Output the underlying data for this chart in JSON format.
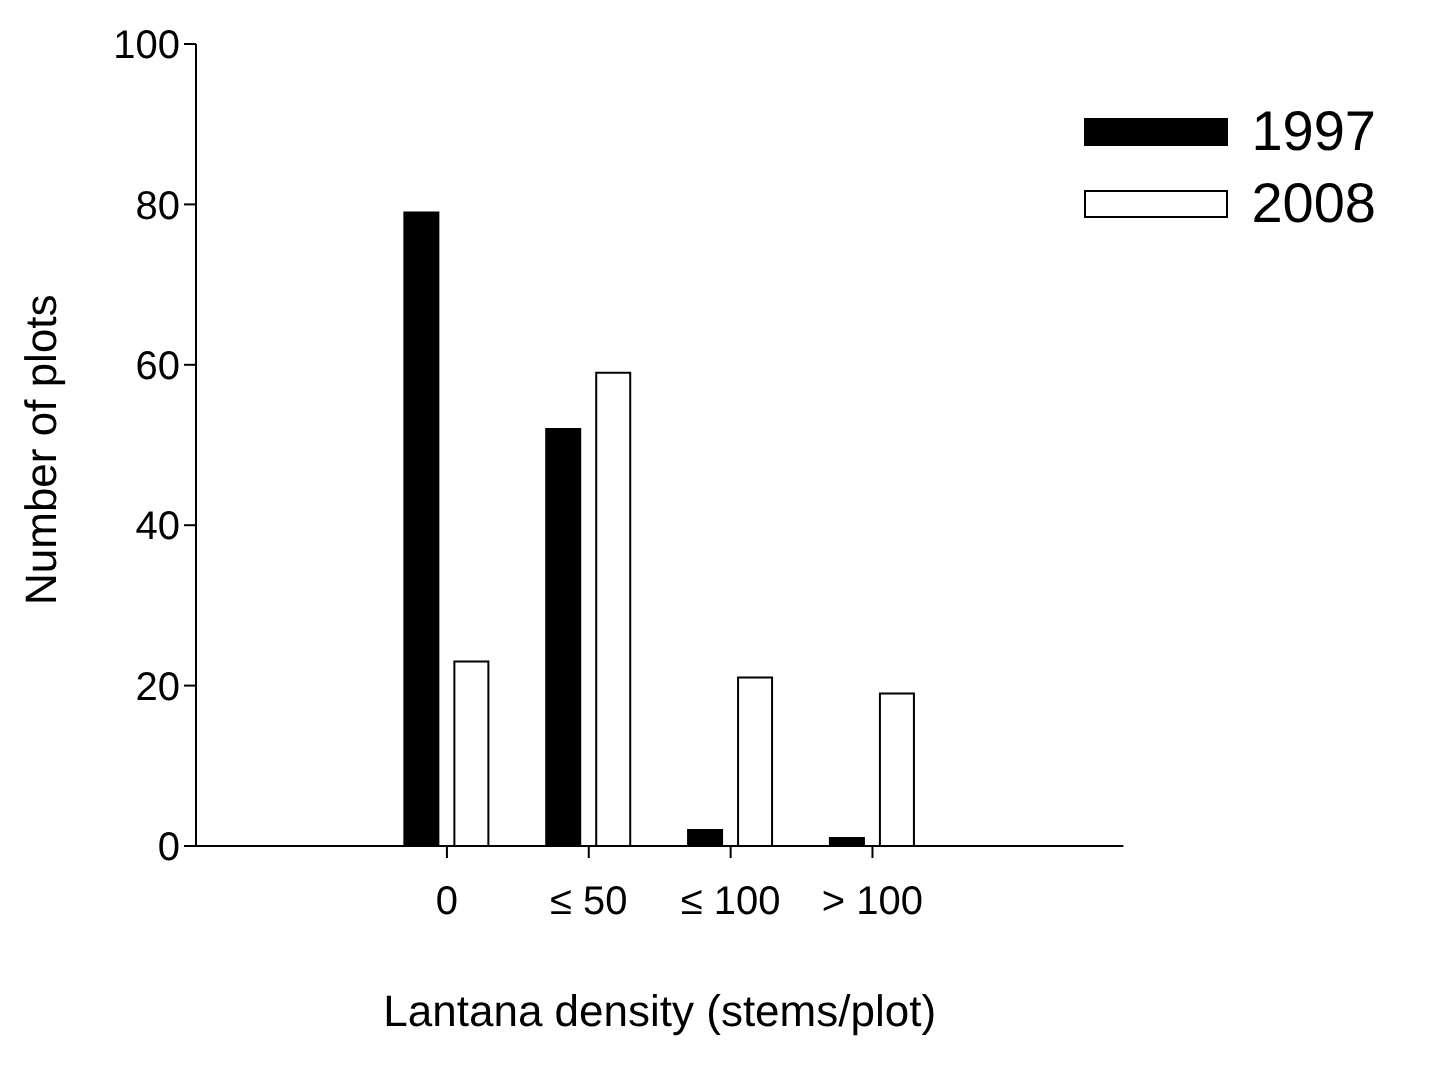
{
  "chart_data": {
    "type": "bar",
    "xlabel": "Lantana density (stems/plot)",
    "ylabel": "Number of plots",
    "categories": [
      "0",
      "≤ 50",
      "≤ 100",
      "> 100"
    ],
    "series": [
      {
        "name": "1997",
        "color": "#000000",
        "values": [
          79,
          52,
          2,
          1
        ]
      },
      {
        "name": "2008",
        "color": "#ffffff",
        "values": [
          23,
          59,
          21,
          19
        ]
      }
    ],
    "ylim": [
      0,
      100
    ],
    "yticks": [
      0,
      20,
      40,
      60,
      80,
      100
    ],
    "grid": false,
    "legend": "top right"
  }
}
